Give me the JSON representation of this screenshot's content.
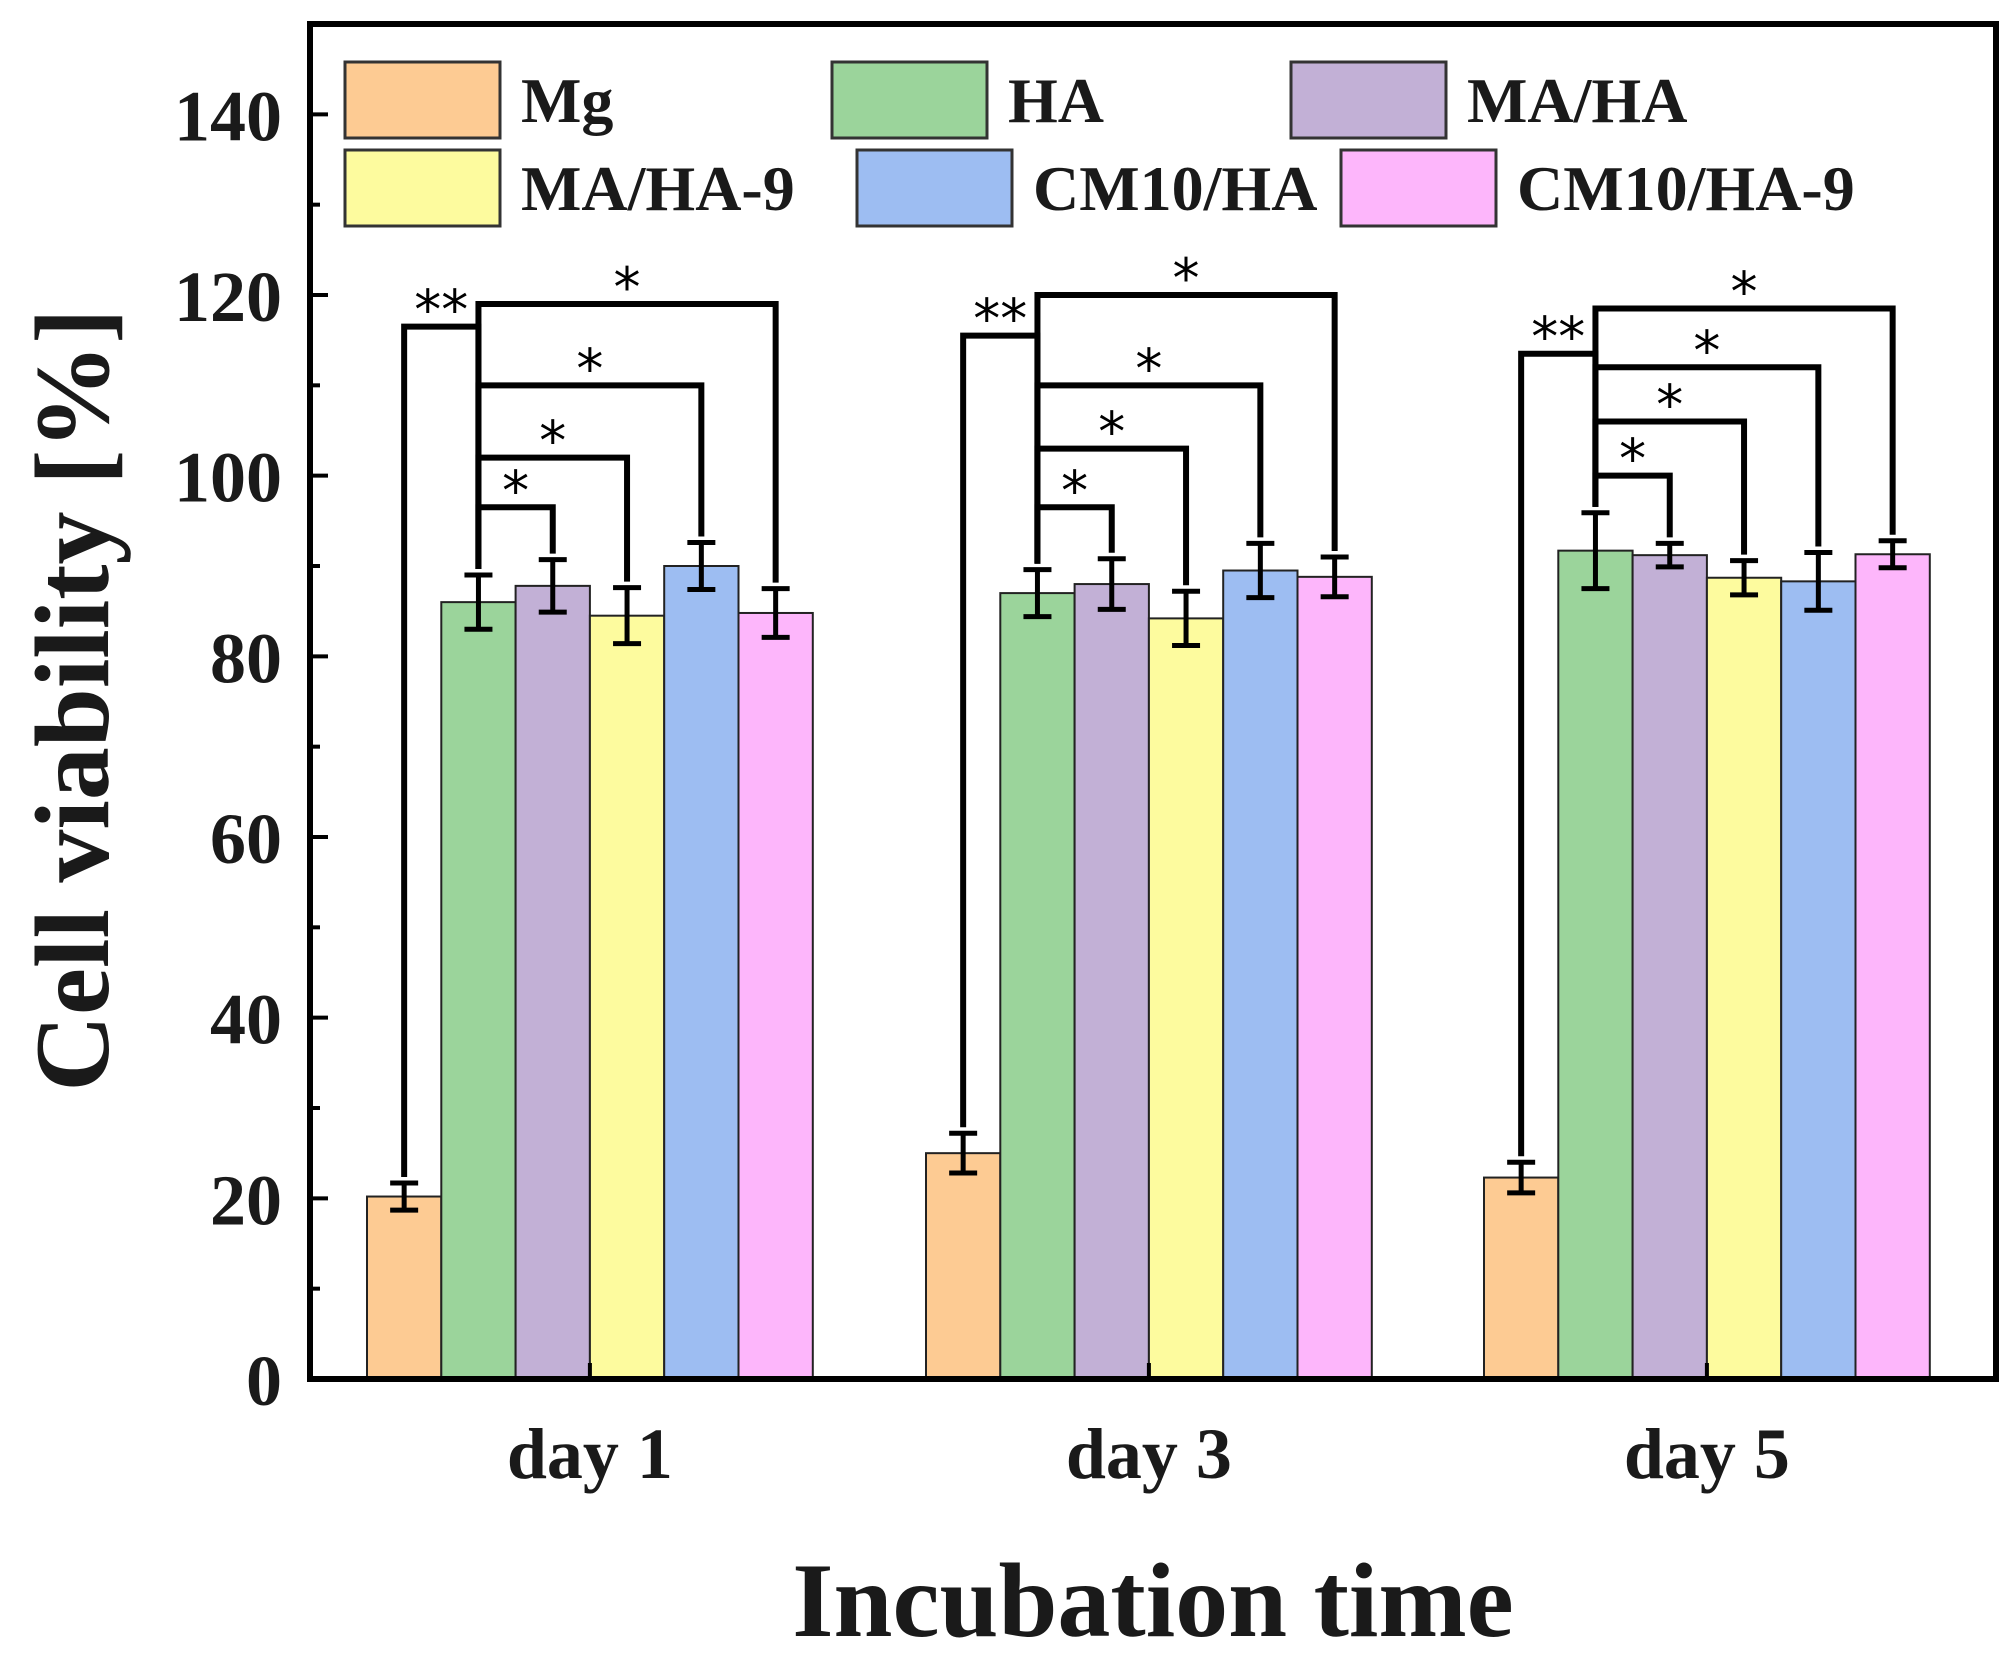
{
  "chart_data": {
    "type": "bar",
    "title": "",
    "xlabel": "Incubation time",
    "ylabel": "Cell viability [%]",
    "ylim": [
      0,
      150
    ],
    "yticks": [
      "0",
      "20",
      "40",
      "60",
      "80",
      "100",
      "120",
      "140"
    ],
    "grid": false,
    "legend_position": "top",
    "categories": [
      "day 1",
      "day 3",
      "day 5"
    ],
    "series": [
      {
        "name": "Mg",
        "color": "#FDCB93",
        "values": [
          20.2,
          25.0,
          22.3
        ],
        "errors": [
          1.5,
          2.2,
          1.7
        ]
      },
      {
        "name": "HA",
        "color": "#9BD49B",
        "values": [
          86.0,
          87.0,
          91.7
        ],
        "errors": [
          3.0,
          2.6,
          4.2
        ]
      },
      {
        "name": "MA/HA",
        "color": "#C2B0D6",
        "values": [
          87.8,
          88.0,
          91.2
        ],
        "errors": [
          2.9,
          2.8,
          1.3
        ]
      },
      {
        "name": "MA/HA-9",
        "color": "#FDFB9E",
        "values": [
          84.5,
          84.2,
          88.7
        ],
        "errors": [
          3.1,
          3.0,
          1.9
        ]
      },
      {
        "name": "CM10/HA",
        "color": "#9DBDF2",
        "values": [
          90.0,
          89.5,
          88.3
        ],
        "errors": [
          2.6,
          3.0,
          3.2
        ]
      },
      {
        "name": "CM10/HA-9",
        "color": "#FDB6FB",
        "values": [
          84.8,
          88.8,
          91.3
        ],
        "errors": [
          2.7,
          2.2,
          1.5
        ]
      }
    ],
    "significance": [
      {
        "group": 0,
        "from": 0,
        "to": 1,
        "label": "**",
        "level": 116.5
      },
      {
        "group": 0,
        "from": 1,
        "to": 2,
        "label": "*",
        "level": 96.5
      },
      {
        "group": 0,
        "from": 1,
        "to": 3,
        "label": "*",
        "level": 102.0
      },
      {
        "group": 0,
        "from": 1,
        "to": 4,
        "label": "*",
        "level": 110.0
      },
      {
        "group": 0,
        "from": 1,
        "to": 5,
        "label": "*",
        "level": 119.0
      },
      {
        "group": 1,
        "from": 0,
        "to": 1,
        "label": "**",
        "level": 115.5
      },
      {
        "group": 1,
        "from": 1,
        "to": 2,
        "label": "*",
        "level": 96.5
      },
      {
        "group": 1,
        "from": 1,
        "to": 3,
        "label": "*",
        "level": 103.0
      },
      {
        "group": 1,
        "from": 1,
        "to": 4,
        "label": "*",
        "level": 110.0
      },
      {
        "group": 1,
        "from": 1,
        "to": 5,
        "label": "*",
        "level": 120.0
      },
      {
        "group": 2,
        "from": 0,
        "to": 1,
        "label": "**",
        "level": 113.5
      },
      {
        "group": 2,
        "from": 1,
        "to": 2,
        "label": "*",
        "level": 100.0
      },
      {
        "group": 2,
        "from": 1,
        "to": 3,
        "label": "*",
        "level": 106.0
      },
      {
        "group": 2,
        "from": 1,
        "to": 4,
        "label": "*",
        "level": 112.0
      },
      {
        "group": 2,
        "from": 1,
        "to": 5,
        "label": "*",
        "level": 118.5
      }
    ]
  }
}
